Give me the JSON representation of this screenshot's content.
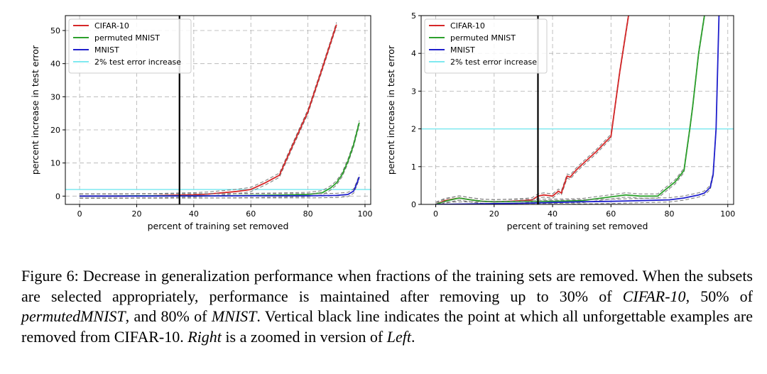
{
  "chart_data": [
    {
      "type": "line",
      "panel": "left",
      "xlabel": "percent of training set removed",
      "ylabel": "percent increase in test error",
      "xlim": [
        -5,
        102
      ],
      "ylim": [
        -2.5,
        54.5
      ],
      "xticks": [
        0,
        20,
        40,
        60,
        80,
        100
      ],
      "yticks": [
        0,
        10,
        20,
        30,
        40,
        50
      ],
      "grid": true,
      "legend_position": "top-left",
      "vline_x": 35,
      "hline_y": 2,
      "series": [
        {
          "name": "CIFAR-10",
          "color": "#d62728",
          "x": [
            0,
            5,
            10,
            15,
            20,
            25,
            30,
            35,
            40,
            45,
            50,
            55,
            60,
            65,
            70,
            75,
            80,
            85,
            90
          ],
          "y": [
            0,
            0,
            0,
            0,
            0.1,
            0.1,
            0.2,
            0.3,
            0.4,
            0.6,
            1.0,
            1.4,
            2.0,
            4.0,
            6.3,
            16.0,
            25.5,
            38.5,
            51.8
          ]
        },
        {
          "name": "permuted MNIST",
          "color": "#2ca02c",
          "x": [
            0,
            10,
            20,
            30,
            40,
            50,
            60,
            70,
            75,
            80,
            85,
            88,
            90,
            92,
            94,
            96,
            98
          ],
          "y": [
            0,
            0,
            0.1,
            0.1,
            0.1,
            0.1,
            0.2,
            0.3,
            0.4,
            0.5,
            1.0,
            2.5,
            4.0,
            6.5,
            10.5,
            15.5,
            22.2
          ]
        },
        {
          "name": "MNIST",
          "color": "#1f1fcc",
          "x": [
            0,
            20,
            40,
            60,
            80,
            90,
            94,
            96,
            97,
            98
          ],
          "y": [
            0,
            0,
            0.05,
            0.1,
            0.1,
            0.2,
            0.5,
            1.5,
            3.5,
            5.8
          ]
        }
      ],
      "reference_line": {
        "name": "2% test error increase",
        "color": "#7fe9f0",
        "y": 2
      }
    },
    {
      "type": "line",
      "panel": "right",
      "xlabel": "percent of training set removed",
      "ylabel": "percent increase in test error",
      "xlim": [
        -5,
        102
      ],
      "ylim": [
        0,
        5
      ],
      "xticks": [
        0,
        20,
        40,
        60,
        80,
        100
      ],
      "yticks": [
        0,
        1,
        2,
        3,
        4,
        5
      ],
      "grid": true,
      "legend_position": "top-left",
      "vline_x": 35,
      "hline_y": 2,
      "series": [
        {
          "name": "CIFAR-10",
          "color": "#d62728",
          "x": [
            0,
            3,
            8,
            12,
            16,
            20,
            25,
            30,
            33,
            35,
            37,
            40,
            42,
            43,
            45,
            46,
            48,
            50,
            55,
            60,
            63,
            66
          ],
          "y": [
            0,
            0.1,
            0.17,
            0.12,
            0.08,
            0.07,
            0.08,
            0.1,
            0.12,
            0.22,
            0.25,
            0.22,
            0.35,
            0.3,
            0.75,
            0.72,
            0.9,
            1.05,
            1.4,
            1.8,
            3.5,
            5.0
          ]
        },
        {
          "name": "permuted MNIST",
          "color": "#2ca02c",
          "x": [
            0,
            4,
            8,
            12,
            16,
            20,
            30,
            40,
            50,
            60,
            65,
            70,
            76,
            78,
            82,
            85,
            87,
            88,
            90,
            92
          ],
          "y": [
            0,
            0.1,
            0.17,
            0.12,
            0.08,
            0.07,
            0.08,
            0.08,
            0.1,
            0.2,
            0.25,
            0.22,
            0.22,
            0.35,
            0.6,
            0.9,
            2.0,
            2.6,
            4.0,
            5.0
          ]
        },
        {
          "name": "MNIST",
          "color": "#1f1fcc",
          "x": [
            0,
            10,
            20,
            30,
            40,
            50,
            60,
            70,
            80,
            85,
            90,
            92,
            94,
            95,
            96,
            97
          ],
          "y": [
            0,
            0.01,
            0.02,
            0.03,
            0.05,
            0.07,
            0.08,
            0.1,
            0.12,
            0.17,
            0.25,
            0.3,
            0.45,
            0.8,
            2.0,
            5.0
          ]
        }
      ],
      "reference_line": {
        "name": "2% test error increase",
        "color": "#7fe9f0",
        "y": 2
      }
    }
  ],
  "caption": {
    "label": "Figure 6:",
    "text_1": " Decrease in generalization performance when fractions of the training sets are removed. When the subsets are selected appropriately, performance is maintained after removing up to 30% of ",
    "em_1": "CIFAR-10",
    "text_2": ", 50% of ",
    "em_2": "permutedMNIST",
    "text_3": ", and 80% of ",
    "em_3": "MNIST",
    "text_4": ". Vertical black line indicates the point at which all unforgettable examples are removed from CIFAR-10. ",
    "em_4": "Right",
    "text_5": " is a zoomed in version of ",
    "em_5": "Left",
    "text_6": "."
  }
}
